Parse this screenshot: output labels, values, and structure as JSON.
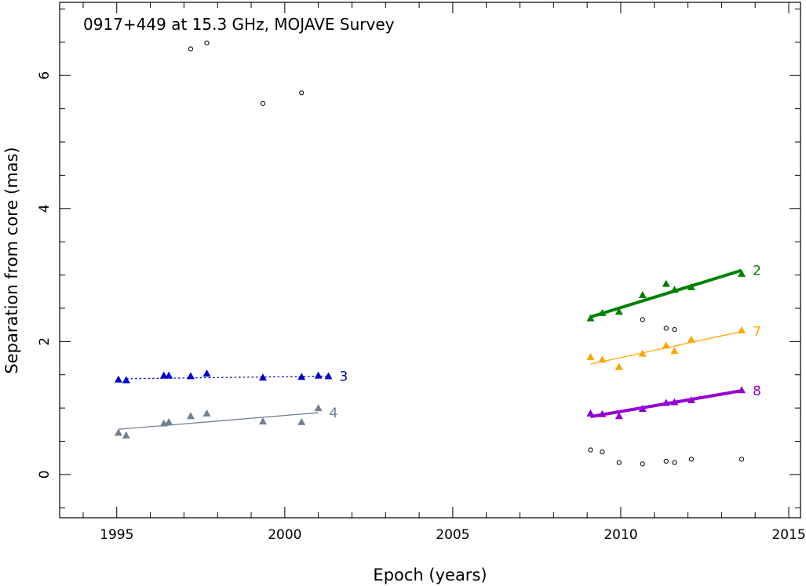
{
  "chart_data": {
    "type": "scatter",
    "title": "0917+449 at 15.3 GHz, MOJAVE Survey",
    "xlabel": "Epoch (years)",
    "ylabel": "Separation from core (mas)",
    "xlim": [
      1993.3,
      2015.35
    ],
    "ylim": [
      -0.65,
      7.1
    ],
    "xticks": [
      1995,
      2000,
      2005,
      2010,
      2015
    ],
    "xtick_labels": [
      "1995",
      "2000",
      "2005",
      "2010",
      "2015"
    ],
    "yticks": [
      0,
      2,
      4,
      6
    ],
    "ytick_labels": [
      "0",
      "2",
      "4",
      "6"
    ],
    "grid": false,
    "series": [
      {
        "name": "2",
        "color": "#008000",
        "marker": "triangle",
        "x": [
          2009.1,
          2009.45,
          2009.95,
          2010.65,
          2011.35,
          2011.6,
          2012.1,
          2013.6
        ],
        "y": [
          2.35,
          2.43,
          2.45,
          2.7,
          2.87,
          2.78,
          2.82,
          3.02
        ],
        "fit": {
          "x": [
            2009.1,
            2013.6
          ],
          "y": [
            2.37,
            3.07
          ],
          "style": "solid",
          "width": 4
        }
      },
      {
        "name": "7",
        "color": "#ffa500",
        "marker": "triangle",
        "x": [
          2009.1,
          2009.45,
          2009.95,
          2010.65,
          2011.35,
          2011.6,
          2012.1,
          2013.6
        ],
        "y": [
          1.77,
          1.73,
          1.62,
          1.82,
          1.94,
          1.86,
          2.03,
          2.17
        ],
        "fit": {
          "x": [
            2009.1,
            2013.6
          ],
          "y": [
            1.66,
            2.15
          ],
          "style": "solid",
          "width": 1.3
        }
      },
      {
        "name": "8",
        "color": "#9400d3",
        "marker": "triangle",
        "x": [
          2009.1,
          2009.45,
          2009.95,
          2010.65,
          2011.35,
          2011.6,
          2012.1,
          2013.6
        ],
        "y": [
          0.92,
          0.91,
          0.88,
          0.99,
          1.08,
          1.09,
          1.12,
          1.27
        ],
        "fit": {
          "x": [
            2009.1,
            2013.6
          ],
          "y": [
            0.87,
            1.26
          ],
          "style": "solid",
          "width": 4
        }
      },
      {
        "name": "3",
        "color": "#0000cd",
        "marker": "triangle",
        "x": [
          1995.05,
          1995.28,
          1996.4,
          1996.55,
          1997.2,
          1997.68,
          1999.35,
          2000.5,
          2001.0,
          2001.3
        ],
        "y": [
          1.43,
          1.42,
          1.49,
          1.49,
          1.48,
          1.52,
          1.46,
          1.47,
          1.49,
          1.48
        ],
        "fit": {
          "x": [
            1995.3,
            2001.3
          ],
          "y": [
            1.44,
            1.48
          ],
          "style": "dotted",
          "width": 1.3
        }
      },
      {
        "name": "4",
        "color": "#708090",
        "marker": "triangle",
        "x": [
          1995.05,
          1995.28,
          1996.4,
          1996.55,
          1997.2,
          1997.68,
          1999.35,
          2000.5,
          2001.0
        ],
        "y": [
          0.63,
          0.59,
          0.77,
          0.79,
          0.88,
          0.92,
          0.8,
          0.79,
          1.0
        ],
        "fit": {
          "x": [
            1995.05,
            2001.0
          ],
          "y": [
            0.68,
            0.93
          ],
          "style": "solid",
          "width": 1.3
        }
      },
      {
        "name": "",
        "color": "#000000",
        "marker": "open-circle",
        "x": [
          1997.2,
          1997.68,
          1999.35,
          2000.5,
          2009.1,
          2009.45,
          2009.95,
          2010.65,
          2010.65,
          2011.35,
          2011.35,
          2011.6,
          2011.6,
          2012.1,
          2013.6
        ],
        "y": [
          6.4,
          6.49,
          5.58,
          5.74,
          0.37,
          0.34,
          0.18,
          0.16,
          2.33,
          2.2,
          0.2,
          2.18,
          0.18,
          0.23,
          0.23
        ]
      }
    ]
  }
}
